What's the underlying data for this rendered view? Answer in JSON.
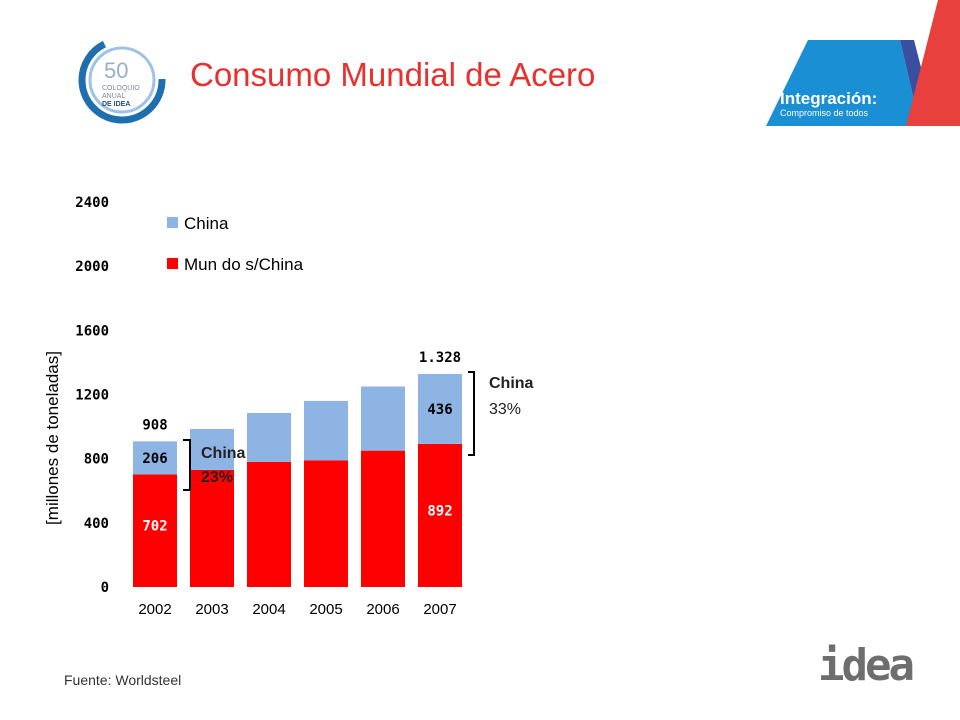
{
  "slide": {
    "title": "Consumo Mundial de Acero",
    "source": "Fuente: Worldsteel",
    "logo_left_text": "50 COLOQUIO ANUAL DE IDEA",
    "banner": {
      "line1": "Integración:",
      "line2": "Compromiso de todos"
    },
    "logo_right_text": "idea",
    "colors": {
      "title": "#e8312f",
      "china": "#8eb4e3",
      "rest": "#ff0000",
      "banner_blue": "#1a8fd3",
      "banner_red": "#e8403c"
    }
  },
  "chart_data": {
    "type": "bar",
    "stacked": true,
    "categories": [
      "2002",
      "2003",
      "2004",
      "2005",
      "2006",
      "2007"
    ],
    "series": [
      {
        "name": "Mun do s/China",
        "color": "#ff0000",
        "values": [
          702,
          730,
          780,
          790,
          850,
          892
        ]
      },
      {
        "name": "China",
        "color": "#8eb4e3",
        "values": [
          206,
          255,
          305,
          370,
          400,
          436
        ]
      }
    ],
    "ylim": [
      0,
      2400
    ],
    "yticks": [
      "0",
      "400",
      "800",
      "1200",
      "1600",
      "2000",
      "2400"
    ],
    "ylabel": "[millones de toneladas]",
    "legend_position": "top-left",
    "grid": false,
    "data_labels": [
      {
        "category": "2002",
        "series": "Mun do s/China",
        "text": "702",
        "color": "#ffffff"
      },
      {
        "category": "2002",
        "series": "China",
        "text": "206",
        "color": "#000000"
      },
      {
        "category": "2002",
        "series": "total",
        "text": "908",
        "color": "#000000"
      },
      {
        "category": "2007",
        "series": "Mun do s/China",
        "text": "892",
        "color": "#ffffff"
      },
      {
        "category": "2007",
        "series": "China",
        "text": "436",
        "color": "#000000"
      },
      {
        "category": "2007",
        "series": "total",
        "text": "1.328",
        "color": "#000000"
      }
    ],
    "annotations": [
      {
        "id": "anno2002",
        "line1": "China",
        "line2": "23%"
      },
      {
        "id": "anno2007",
        "line1": "China",
        "line2": "33%"
      }
    ]
  }
}
